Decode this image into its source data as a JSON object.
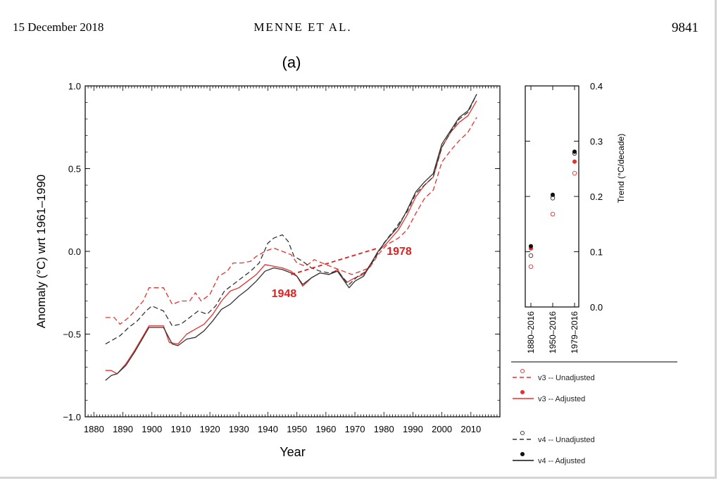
{
  "header": {
    "date": "15 December 2018",
    "authors": "MENNE ET AL.",
    "page_number": "9841"
  },
  "chart_data": [
    {
      "type": "line",
      "panel_label": "(a)",
      "xlabel": "Year",
      "ylabel": "Anomaly (°C) wrt 1961–1990",
      "xlim": [
        1877,
        2020
      ],
      "ylim": [
        -1.0,
        1.0
      ],
      "xticks": [
        "1880",
        "1890",
        "1900",
        "1910",
        "1920",
        "1930",
        "1940",
        "1950",
        "1960",
        "1970",
        "1980",
        "1990",
        "2000",
        "2010"
      ],
      "yticks": [
        "−1.0",
        "−0.5",
        "0.0",
        "0.5",
        "1.0"
      ],
      "annotations": [
        {
          "text": "1948",
          "x": 1948,
          "y": -0.14
        },
        {
          "text": "1978",
          "x": 1978,
          "y": 0.0
        }
      ],
      "series": [
        {
          "name": "v3 -- Unadjusted",
          "color": "#e83030",
          "dash": true,
          "points": [
            [
              1884,
              -0.4
            ],
            [
              1887,
              -0.4
            ],
            [
              1889,
              -0.44
            ],
            [
              1892,
              -0.4
            ],
            [
              1894,
              -0.36
            ],
            [
              1897,
              -0.3
            ],
            [
              1899,
              -0.22
            ],
            [
              1904,
              -0.22
            ],
            [
              1907,
              -0.32
            ],
            [
              1910,
              -0.3
            ],
            [
              1913,
              -0.3
            ],
            [
              1915,
              -0.25
            ],
            [
              1917,
              -0.3
            ],
            [
              1920,
              -0.26
            ],
            [
              1923,
              -0.15
            ],
            [
              1926,
              -0.12
            ],
            [
              1928,
              -0.07
            ],
            [
              1931,
              -0.07
            ],
            [
              1934,
              -0.06
            ],
            [
              1936,
              -0.03
            ],
            [
              1939,
              0.0
            ],
            [
              1942,
              0.02
            ],
            [
              1945,
              0.0
            ],
            [
              1948,
              -0.02
            ],
            [
              1950,
              -0.07
            ],
            [
              1953,
              -0.09
            ],
            [
              1956,
              -0.05
            ],
            [
              1960,
              -0.08
            ],
            [
              1963,
              -0.1
            ],
            [
              1966,
              -0.12
            ],
            [
              1969,
              -0.14
            ],
            [
              1972,
              -0.12
            ],
            [
              1975,
              -0.1
            ],
            [
              1978,
              -0.02
            ],
            [
              1981,
              0.04
            ],
            [
              1985,
              0.08
            ],
            [
              1988,
              0.13
            ],
            [
              1991,
              0.23
            ],
            [
              1994,
              0.32
            ],
            [
              1997,
              0.37
            ],
            [
              2000,
              0.54
            ],
            [
              2003,
              0.61
            ],
            [
              2006,
              0.67
            ],
            [
              2009,
              0.72
            ],
            [
              2012,
              0.81
            ]
          ]
        },
        {
          "name": "v3 -- Adjusted",
          "color": "#e83030",
          "dash": false,
          "points": [
            [
              1884,
              -0.72
            ],
            [
              1886,
              -0.72
            ],
            [
              1888,
              -0.74
            ],
            [
              1891,
              -0.68
            ],
            [
              1894,
              -0.6
            ],
            [
              1897,
              -0.51
            ],
            [
              1899,
              -0.45
            ],
            [
              1904,
              -0.45
            ],
            [
              1906,
              -0.55
            ],
            [
              1909,
              -0.56
            ],
            [
              1912,
              -0.5
            ],
            [
              1915,
              -0.47
            ],
            [
              1918,
              -0.44
            ],
            [
              1921,
              -0.38
            ],
            [
              1924,
              -0.3
            ],
            [
              1927,
              -0.24
            ],
            [
              1930,
              -0.22
            ],
            [
              1933,
              -0.18
            ],
            [
              1936,
              -0.14
            ],
            [
              1939,
              -0.08
            ],
            [
              1942,
              -0.09
            ],
            [
              1945,
              -0.1
            ],
            [
              1948,
              -0.12
            ],
            [
              1950,
              -0.15
            ],
            [
              1952,
              -0.21
            ],
            [
              1955,
              -0.16
            ],
            [
              1958,
              -0.13
            ],
            [
              1961,
              -0.14
            ],
            [
              1964,
              -0.11
            ],
            [
              1967,
              -0.19
            ],
            [
              1970,
              -0.16
            ],
            [
              1973,
              -0.14
            ],
            [
              1976,
              -0.06
            ],
            [
              1978,
              0.0
            ],
            [
              1981,
              0.05
            ],
            [
              1985,
              0.13
            ],
            [
              1988,
              0.22
            ],
            [
              1991,
              0.33
            ],
            [
              1994,
              0.4
            ],
            [
              1997,
              0.45
            ],
            [
              2000,
              0.63
            ],
            [
              2003,
              0.72
            ],
            [
              2006,
              0.78
            ],
            [
              2009,
              0.82
            ],
            [
              2012,
              0.91
            ]
          ]
        },
        {
          "name": "v4 -- Unadjusted",
          "color": "#333333",
          "dash": true,
          "points": [
            [
              1884,
              -0.56
            ],
            [
              1887,
              -0.53
            ],
            [
              1889,
              -0.51
            ],
            [
              1892,
              -0.46
            ],
            [
              1895,
              -0.42
            ],
            [
              1898,
              -0.36
            ],
            [
              1900,
              -0.33
            ],
            [
              1904,
              -0.36
            ],
            [
              1907,
              -0.45
            ],
            [
              1910,
              -0.44
            ],
            [
              1913,
              -0.4
            ],
            [
              1916,
              -0.36
            ],
            [
              1919,
              -0.38
            ],
            [
              1922,
              -0.33
            ],
            [
              1925,
              -0.24
            ],
            [
              1928,
              -0.2
            ],
            [
              1931,
              -0.16
            ],
            [
              1934,
              -0.12
            ],
            [
              1937,
              -0.07
            ],
            [
              1940,
              0.05
            ],
            [
              1942,
              0.08
            ],
            [
              1945,
              0.1
            ],
            [
              1947,
              0.06
            ],
            [
              1949,
              -0.03
            ],
            [
              1952,
              -0.06
            ],
            [
              1955,
              -0.1
            ],
            [
              1958,
              -0.12
            ],
            [
              1961,
              -0.13
            ],
            [
              1964,
              -0.12
            ],
            [
              1968,
              -0.2
            ],
            [
              1971,
              -0.15
            ],
            [
              1974,
              -0.12
            ],
            [
              1977,
              -0.04
            ],
            [
              1980,
              0.05
            ],
            [
              1984,
              0.14
            ],
            [
              1988,
              0.24
            ],
            [
              1991,
              0.35
            ],
            [
              1994,
              0.4
            ],
            [
              1997,
              0.45
            ],
            [
              2000,
              0.63
            ],
            [
              2003,
              0.72
            ],
            [
              2006,
              0.8
            ],
            [
              2009,
              0.84
            ],
            [
              2012,
              0.95
            ]
          ]
        },
        {
          "name": "v4 -- Adjusted",
          "color": "#333333",
          "dash": false,
          "points": [
            [
              1884,
              -0.78
            ],
            [
              1886,
              -0.75
            ],
            [
              1888,
              -0.74
            ],
            [
              1891,
              -0.69
            ],
            [
              1894,
              -0.61
            ],
            [
              1897,
              -0.52
            ],
            [
              1899,
              -0.46
            ],
            [
              1904,
              -0.46
            ],
            [
              1907,
              -0.56
            ],
            [
              1909,
              -0.57
            ],
            [
              1912,
              -0.53
            ],
            [
              1915,
              -0.52
            ],
            [
              1918,
              -0.48
            ],
            [
              1921,
              -0.42
            ],
            [
              1924,
              -0.35
            ],
            [
              1927,
              -0.32
            ],
            [
              1930,
              -0.27
            ],
            [
              1933,
              -0.23
            ],
            [
              1936,
              -0.18
            ],
            [
              1939,
              -0.12
            ],
            [
              1942,
              -0.1
            ],
            [
              1945,
              -0.11
            ],
            [
              1948,
              -0.13
            ],
            [
              1950,
              -0.15
            ],
            [
              1952,
              -0.2
            ],
            [
              1955,
              -0.16
            ],
            [
              1958,
              -0.13
            ],
            [
              1961,
              -0.14
            ],
            [
              1964,
              -0.12
            ],
            [
              1968,
              -0.22
            ],
            [
              1970,
              -0.18
            ],
            [
              1973,
              -0.15
            ],
            [
              1976,
              -0.06
            ],
            [
              1978,
              0.0
            ],
            [
              1981,
              0.07
            ],
            [
              1985,
              0.15
            ],
            [
              1988,
              0.25
            ],
            [
              1991,
              0.36
            ],
            [
              1994,
              0.42
            ],
            [
              1997,
              0.47
            ],
            [
              2000,
              0.65
            ],
            [
              2003,
              0.73
            ],
            [
              2006,
              0.81
            ],
            [
              2009,
              0.85
            ],
            [
              2012,
              0.95
            ]
          ]
        },
        {
          "name": "1948–1978 trend",
          "color": "#e02020",
          "dash": true,
          "points": [
            [
              1948,
              -0.14
            ],
            [
              1978,
              0.02
            ]
          ]
        }
      ]
    },
    {
      "type": "scatter",
      "ylabel": "Trend (°C/decade)",
      "ylim": [
        0.0,
        0.4
      ],
      "yticks": [
        "0.0",
        "0.1",
        "0.2",
        "0.3",
        "0.4"
      ],
      "categories": [
        "1880–2016",
        "1950–2016",
        "1979–2016"
      ],
      "series": [
        {
          "name": "v3 -- Unadjusted",
          "color": "#e83030",
          "filled": false,
          "values": [
            0.073,
            0.168,
            0.242
          ]
        },
        {
          "name": "v3 -- Adjusted",
          "color": "#e83030",
          "filled": true,
          "values": [
            0.106,
            0.199,
            0.263
          ]
        },
        {
          "name": "v4 -- Unadjusted",
          "color": "#333333",
          "filled": false,
          "values": [
            0.093,
            0.197,
            0.278
          ]
        },
        {
          "name": "v4 -- Adjusted",
          "color": "#111111",
          "filled": true,
          "values": [
            0.11,
            0.203,
            0.281
          ]
        }
      ]
    }
  ],
  "legend": [
    {
      "label": "v3 -- Unadjusted",
      "color": "#e83030",
      "dash": true,
      "marker": "open"
    },
    {
      "label": "v3 -- Adjusted",
      "color": "#e83030",
      "dash": false,
      "marker": "filled"
    },
    {
      "label": "v4 -- Unadjusted",
      "color": "#333333",
      "dash": true,
      "marker": "open"
    },
    {
      "label": "v4 -- Adjusted",
      "color": "#111111",
      "dash": false,
      "marker": "filled"
    }
  ]
}
